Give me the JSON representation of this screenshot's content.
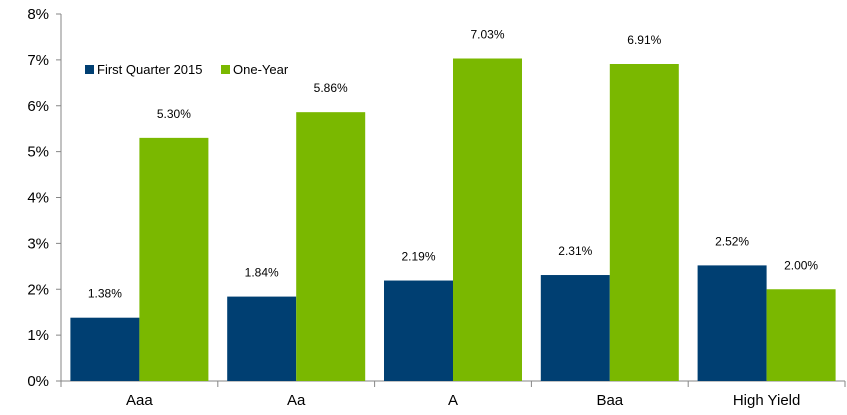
{
  "chart_data": {
    "type": "bar",
    "categories": [
      "Aaa",
      "Aa",
      "A",
      "Baa",
      "High Yield"
    ],
    "series": [
      {
        "name": "First Quarter 2015",
        "color": "#003f72",
        "values": [
          1.38,
          1.84,
          2.19,
          2.31,
          2.52
        ],
        "labels": [
          "1.38%",
          "1.84%",
          "2.19%",
          "2.31%",
          "2.52%"
        ]
      },
      {
        "name": "One-Year",
        "color": "#7ab800",
        "values": [
          5.3,
          5.86,
          7.03,
          6.91,
          2.0
        ],
        "labels": [
          "5.30%",
          "5.86%",
          "7.03%",
          "6.91%",
          "2.00%"
        ]
      }
    ],
    "ylim": [
      0,
      8
    ],
    "yticks": [
      0,
      1,
      2,
      3,
      4,
      5,
      6,
      7,
      8
    ],
    "ytick_labels": [
      "0%",
      "1%",
      "2%",
      "3%",
      "4%",
      "5%",
      "6%",
      "7%",
      "8%"
    ],
    "title": "",
    "xlabel": "",
    "ylabel": "",
    "grid": false,
    "legend_position": "top-left"
  }
}
